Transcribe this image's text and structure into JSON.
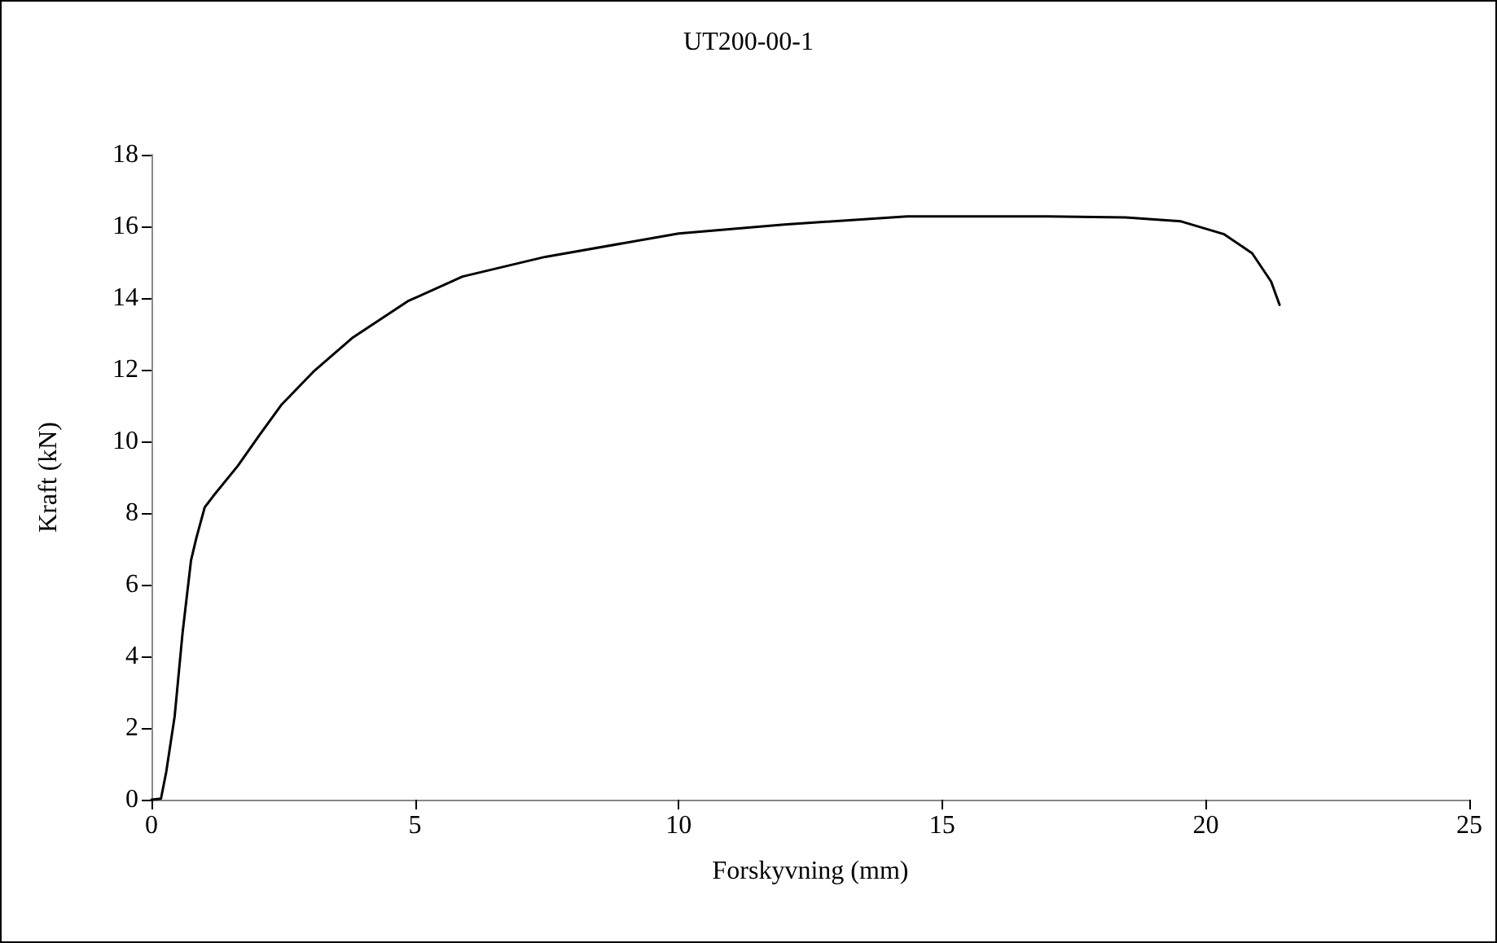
{
  "chart_data": {
    "type": "line",
    "title": "UT200-00-1",
    "xlabel": "Forskyvning (mm)",
    "ylabel": "Kraft (kN)",
    "xlim": [
      0,
      25
    ],
    "xticks": [
      0,
      5,
      10,
      15,
      20,
      25
    ],
    "ylim": [
      0,
      18
    ],
    "yticks": [
      0,
      2,
      4,
      6,
      8,
      10,
      12,
      14,
      16,
      18
    ],
    "grid": false,
    "marker": "none",
    "line_style": "solid",
    "series": [
      {
        "color": "#000000",
        "x": [
          0,
          0.18,
          0.28,
          0.44,
          0.59,
          0.75,
          0.85,
          1.01,
          1.17,
          1.64,
          2.05,
          2.47,
          3.09,
          3.82,
          4.86,
          5.9,
          7.47,
          10,
          12,
          14.33,
          15,
          17,
          18.48,
          19.53,
          20.35,
          20.88,
          21.24,
          21.4
        ],
        "values": [
          0,
          0.03,
          0.78,
          2.33,
          4.66,
          6.68,
          7.3,
          8.16,
          8.47,
          9.32,
          10.18,
          11.03,
          11.97,
          12.9,
          13.91,
          14.6,
          15.15,
          15.8,
          16.05,
          16.28,
          16.28,
          16.28,
          16.25,
          16.14,
          15.78,
          15.25,
          14.46,
          13.81
        ]
      }
    ]
  }
}
